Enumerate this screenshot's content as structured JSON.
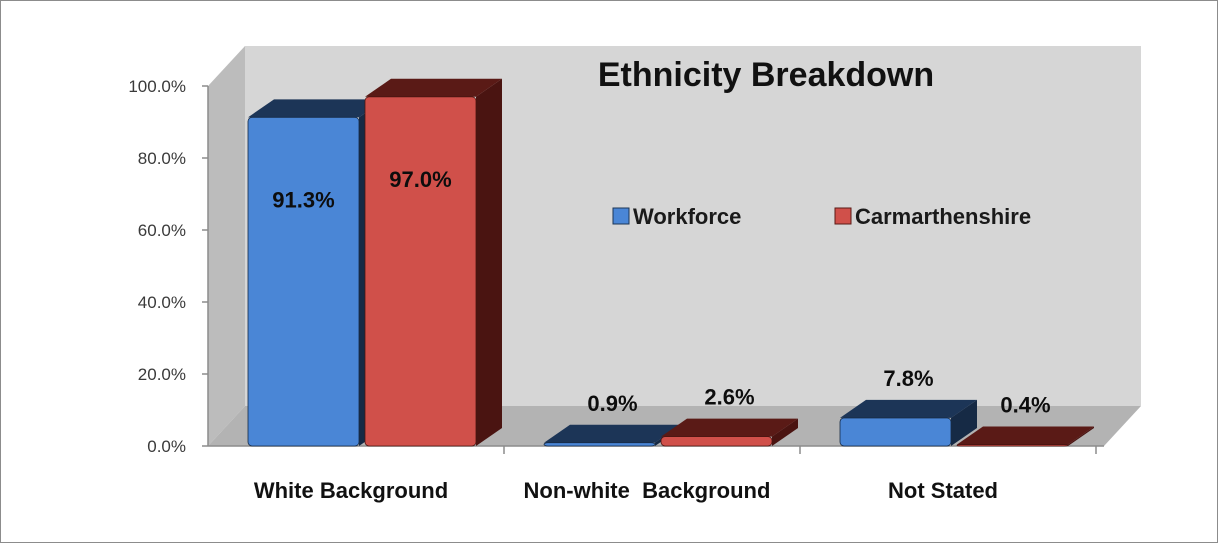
{
  "chart_data": {
    "type": "bar",
    "title": "Ethnicity Breakdown",
    "categories": [
      "White Background",
      "Non-white  Background",
      "Not Stated"
    ],
    "series": [
      {
        "name": "Workforce",
        "values": [
          91.3,
          0.9,
          7.8
        ],
        "labels": [
          "91.3%",
          "0.9%",
          "7.8%"
        ],
        "front_color": "#4a86d6",
        "top_color": "#1c3557",
        "side_color": "#162a45"
      },
      {
        "name": "Carmarthenshire",
        "values": [
          97.0,
          2.6,
          0.4
        ],
        "labels": [
          "97.0%",
          "2.6%",
          "0.4%"
        ],
        "front_color": "#d0504a",
        "top_color": "#5a1a16",
        "side_color": "#4a1411"
      }
    ],
    "y_ticks": [
      "0.0%",
      "20.0%",
      "40.0%",
      "60.0%",
      "80.0%",
      "100.0%"
    ],
    "ylim": [
      0,
      100
    ],
    "legend_position": "middle-right",
    "grid": false,
    "wall_color": "#d6d6d6",
    "floor_color": "#b3b3b3"
  }
}
